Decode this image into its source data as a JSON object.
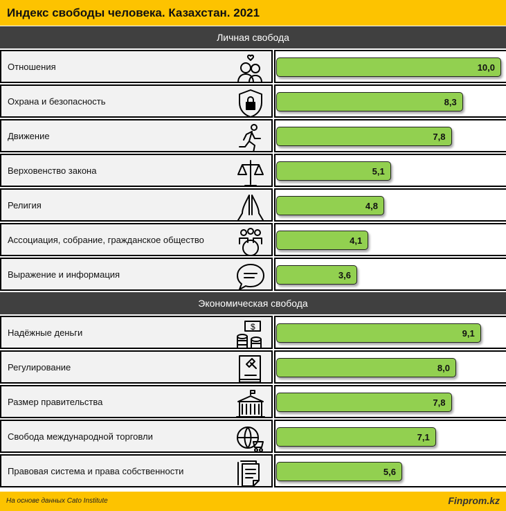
{
  "title": "Индекс свободы человека. Казахстан. 2021",
  "chart_data": {
    "type": "bar",
    "title": "Индекс свободы человека. Казахстан. 2021",
    "xlim": [
      0,
      10
    ],
    "groups": [
      {
        "name": "Личная свобода",
        "items": [
          {
            "label": "Отношения",
            "value": 10.0,
            "display": "10,0",
            "icon": "couple-heart-icon"
          },
          {
            "label": "Охрана и безопасность",
            "value": 8.3,
            "display": "8,3",
            "icon": "shield-lock-icon"
          },
          {
            "label": "Движение",
            "value": 7.8,
            "display": "7,8",
            "icon": "running-person-icon"
          },
          {
            "label": "Верховенство закона",
            "value": 5.1,
            "display": "5,1",
            "icon": "scales-icon"
          },
          {
            "label": "Религия",
            "value": 4.8,
            "display": "4,8",
            "icon": "praying-hands-icon"
          },
          {
            "label": "Ассоциация, собрание, гражданское общество",
            "value": 4.1,
            "display": "4,1",
            "icon": "people-globe-icon"
          },
          {
            "label": "Выражение и информация",
            "value": 3.6,
            "display": "3,6",
            "icon": "speech-bubble-icon"
          }
        ]
      },
      {
        "name": "Экономическая свобода",
        "items": [
          {
            "label": "Надёжные деньги",
            "value": 9.1,
            "display": "9,1",
            "icon": "money-coins-icon"
          },
          {
            "label": "Регулирование",
            "value": 8.0,
            "display": "8,0",
            "icon": "law-book-gavel-icon"
          },
          {
            "label": "Размер правительства",
            "value": 7.8,
            "display": "7,8",
            "icon": "government-building-icon"
          },
          {
            "label": "Свобода международной торговли",
            "value": 7.1,
            "display": "7,1",
            "icon": "globe-cart-icon"
          },
          {
            "label": "Правовая система и права собственности",
            "value": 5.6,
            "display": "5,6",
            "icon": "documents-icon"
          }
        ]
      }
    ]
  },
  "colors": {
    "header": "#fdc300",
    "section": "#404040",
    "bar": "#92d050"
  },
  "footer": {
    "source": "На основе данных Cato Institute",
    "brand": "Finprom.kz"
  }
}
